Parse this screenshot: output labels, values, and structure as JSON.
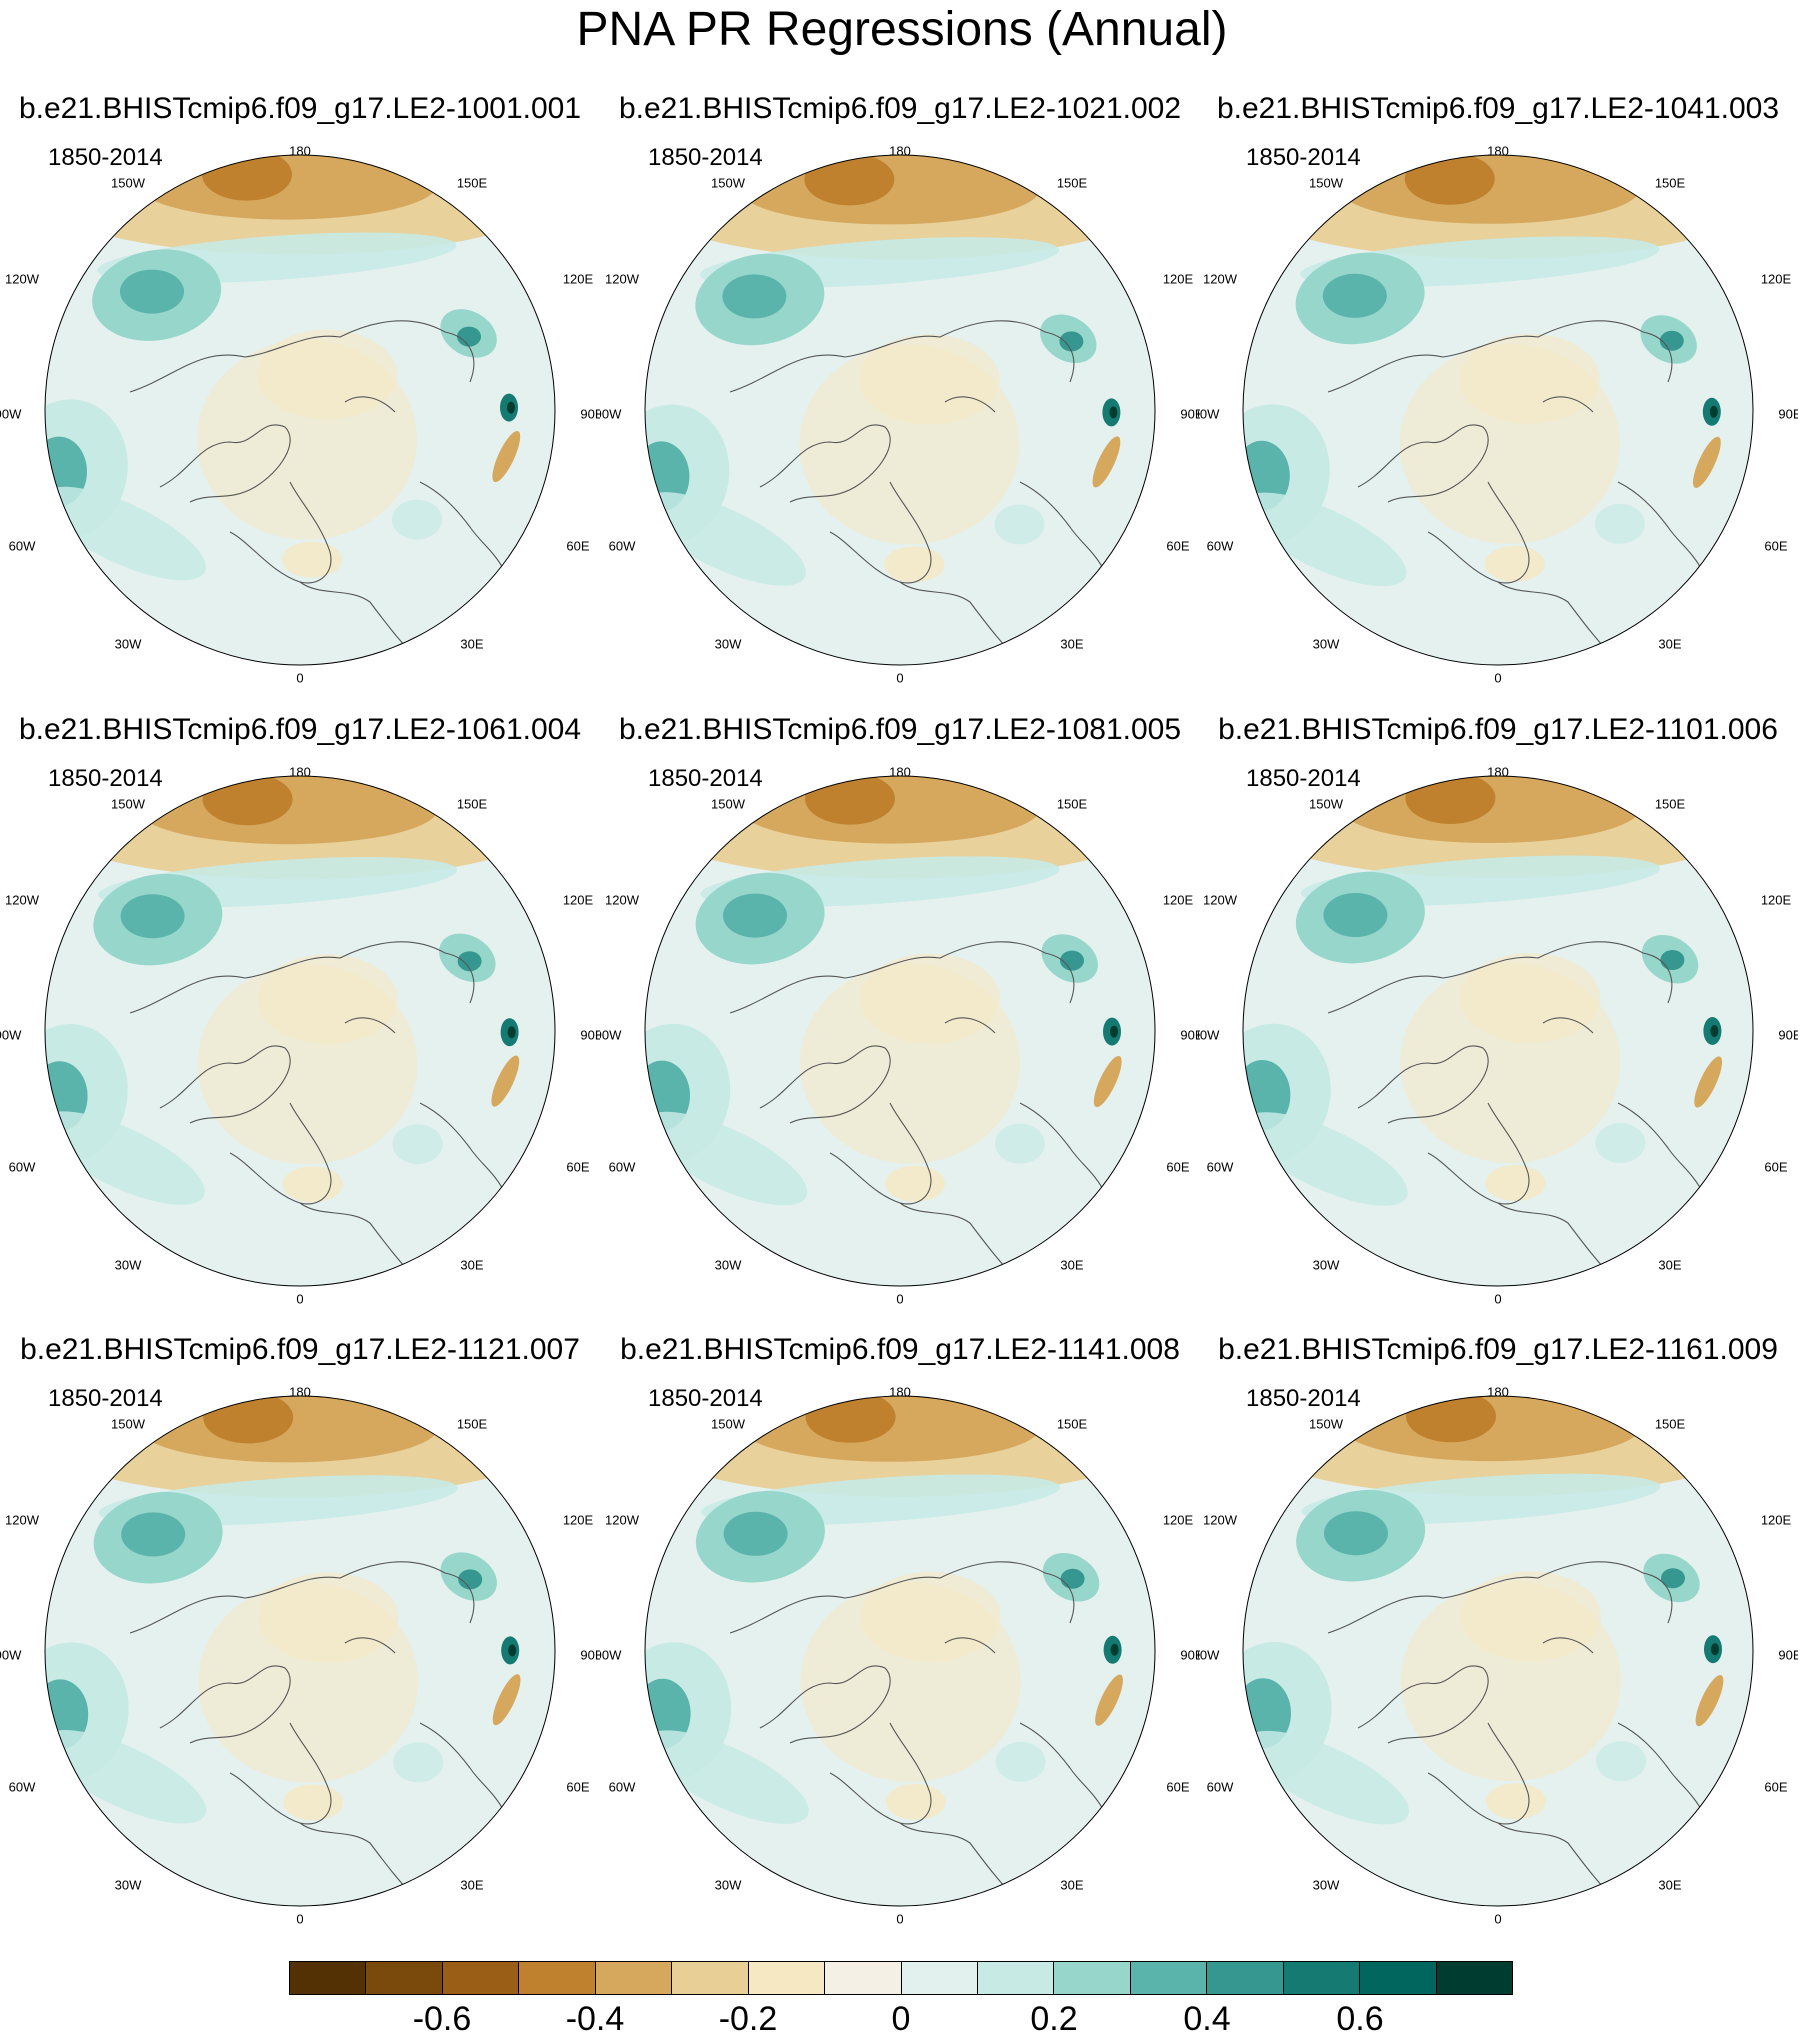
{
  "title": "PNA PR Regressions (Annual)",
  "period": "1850-2014",
  "panels": [
    {
      "name": "b.e21.BHISTcmip6.f09_g17.LE2-1001.001"
    },
    {
      "name": "b.e21.BHISTcmip6.f09_g17.LE2-1021.002"
    },
    {
      "name": "b.e21.BHISTcmip6.f09_g17.LE2-1041.003"
    },
    {
      "name": "b.e21.BHISTcmip6.f09_g17.LE2-1061.004"
    },
    {
      "name": "b.e21.BHISTcmip6.f09_g17.LE2-1081.005"
    },
    {
      "name": "b.e21.BHISTcmip6.f09_g17.LE2-1101.006"
    },
    {
      "name": "b.e21.BHISTcmip6.f09_g17.LE2-1121.007"
    },
    {
      "name": "b.e21.BHISTcmip6.f09_g17.LE2-1141.008"
    },
    {
      "name": "b.e21.BHISTcmip6.f09_g17.LE2-1161.009"
    }
  ],
  "longitude_labels": {
    "top": "180",
    "upper_left": "150W",
    "upper_right": "150E",
    "mid_upper_left": "120W",
    "mid_upper_right": "120E",
    "left": "90W",
    "right": "90E",
    "mid_lower_left": "60W",
    "mid_lower_right": "60E",
    "lower_left": "30W",
    "lower_right": "30E",
    "bottom": "0"
  },
  "colorbar": {
    "colors": [
      "#543005",
      "#7a4a0d",
      "#9a5e16",
      "#bf812d",
      "#d5a85e",
      "#e8cf96",
      "#f6e8c3",
      "#f5f0e5",
      "#e2f0ee",
      "#c7eae5",
      "#97d6cb",
      "#5ab4ac",
      "#35978f",
      "#157a71",
      "#01665e",
      "#003c30"
    ],
    "tick_labels": [
      "-0.6",
      "-0.4",
      "-0.2",
      "0",
      "0.2",
      "0.4",
      "0.6"
    ]
  },
  "colors": {
    "ocean_base": "#e4f1ef",
    "land_neutral": "#f4efe3",
    "coast": "#555555"
  }
}
